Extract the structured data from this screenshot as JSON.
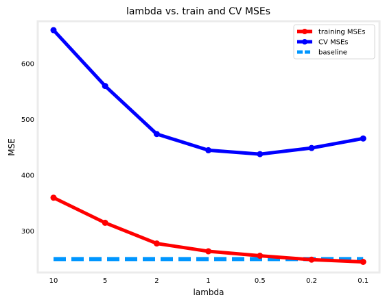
{
  "chart_data": {
    "type": "line",
    "title": "lambda vs. train and CV MSEs",
    "xlabel": "lambda",
    "ylabel": "MSE",
    "categories": [
      "10",
      "5",
      "2",
      "1",
      "0.5",
      "0.2",
      "0.1"
    ],
    "ylim": [
      226,
      676
    ],
    "yticks": [
      300,
      400,
      500,
      600
    ],
    "grid": false,
    "legend_position": "top-right",
    "series": [
      {
        "name": "training MSEs",
        "color": "#ff0000",
        "style": "solid-marker",
        "values": [
          360,
          315,
          278,
          264,
          256,
          249,
          245
        ]
      },
      {
        "name": "CV MSEs",
        "color": "#0000ff",
        "style": "solid-marker",
        "values": [
          660,
          560,
          474,
          445,
          438,
          449,
          466
        ]
      },
      {
        "name": "baseline",
        "color": "#0096ff",
        "style": "dashed",
        "values": [
          250,
          250,
          250,
          250,
          250,
          250,
          250
        ]
      }
    ]
  }
}
